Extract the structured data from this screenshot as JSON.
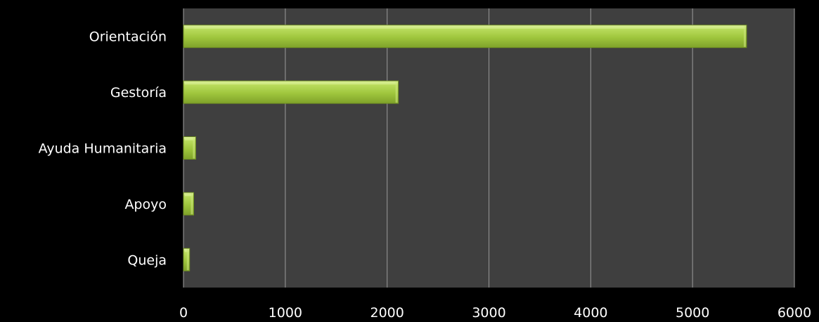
{
  "chart_data": {
    "type": "bar",
    "orientation": "horizontal",
    "categories": [
      "Orientación",
      "Gestoría",
      "Ayuda Humanitaria",
      "Apoyo",
      "Queja"
    ],
    "values": [
      5530,
      2110,
      120,
      100,
      60
    ],
    "title": "",
    "xlabel": "",
    "ylabel": "",
    "xlim": [
      0,
      6000
    ],
    "x_ticks": [
      "0",
      "1000",
      "2000",
      "3000",
      "4000",
      "5000",
      "6000"
    ],
    "grid": "vertical",
    "legend": "none"
  },
  "colors": {
    "background": "#000000",
    "plot_area": "#3f3f3f",
    "gridline": "#8c8c8c",
    "bar_fill": "#9fc63d",
    "bar_highlight": "#d3ec8a",
    "bar_edge": "#6f8f22",
    "text": "#ffffff"
  }
}
